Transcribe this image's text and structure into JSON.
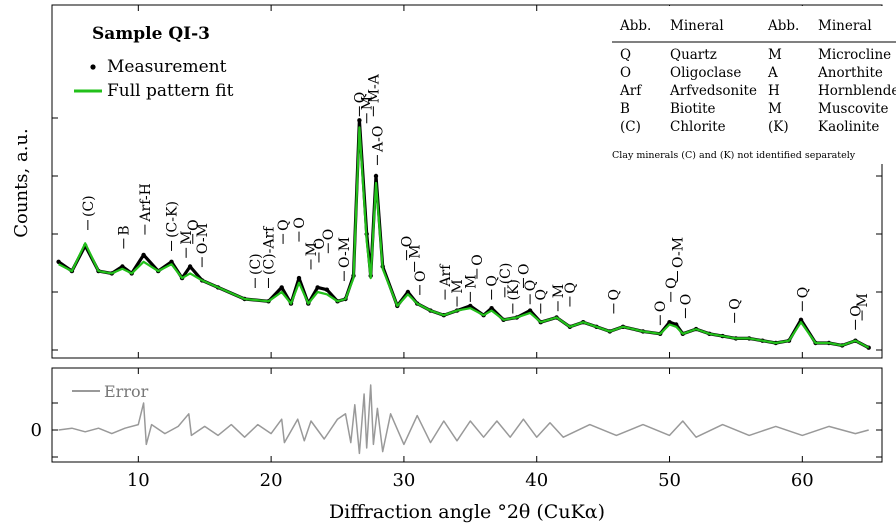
{
  "chart_data": [
    {
      "type": "line",
      "title": "Sample QI-3",
      "xlabel": "Diffraction angle °2θ (CuKα)",
      "ylabel": "Counts, a.u.",
      "xlim": [
        3.5,
        66
      ],
      "ylim": [
        0,
        100
      ],
      "x_ticks": [
        "10",
        "20",
        "30",
        "40",
        "50",
        "60"
      ],
      "grid": false,
      "legend_position": "top-left",
      "legend": [
        {
          "label": "Measurement",
          "style": "dot",
          "color": "#000000"
        },
        {
          "label": "Full pattern fit",
          "style": "line",
          "color": "#22c01a"
        }
      ],
      "series": [
        {
          "name": "Measurement",
          "color": "#000000",
          "x": [
            4,
            5,
            6,
            7,
            8,
            8.8,
            9.5,
            10.4,
            11.5,
            12.5,
            13.3,
            13.9,
            14.8,
            16,
            18,
            19.8,
            20.8,
            21.5,
            22.1,
            22.8,
            23.5,
            24.2,
            25,
            25.6,
            26.2,
            26.65,
            27.2,
            27.5,
            27.9,
            28.4,
            29.5,
            30.3,
            31,
            32,
            33,
            34,
            35,
            36,
            36.6,
            37.5,
            38.5,
            39.5,
            40.3,
            41.5,
            42.5,
            43.5,
            44.5,
            45.5,
            46.5,
            48,
            49.3,
            50,
            50.5,
            51,
            52,
            53,
            54,
            55,
            56,
            57,
            58,
            59,
            59.9,
            61,
            62,
            63,
            64,
            65
          ],
          "y": [
            38,
            34,
            45,
            34,
            33,
            36,
            33,
            41,
            34,
            38,
            31,
            36,
            30,
            27,
            22,
            21,
            27,
            20,
            31,
            20,
            27,
            26,
            21,
            22,
            32,
            99,
            50,
            32,
            75,
            36,
            19,
            25,
            20,
            17,
            15,
            17,
            19,
            15,
            18,
            13,
            14,
            17,
            12,
            14,
            10,
            12,
            10,
            8,
            10,
            8,
            7,
            12,
            11,
            7,
            9,
            7,
            6,
            5,
            5,
            4,
            3,
            4,
            13,
            3,
            3,
            2,
            4,
            1
          ]
        },
        {
          "name": "Full pattern fit",
          "color": "#22c01a",
          "x": [
            4,
            5,
            6,
            7,
            8,
            8.8,
            9.5,
            10.4,
            11.5,
            12.5,
            13.3,
            13.9,
            14.8,
            16,
            18,
            19.8,
            20.8,
            21.5,
            22.1,
            22.8,
            23.5,
            24.2,
            25,
            25.6,
            26.2,
            26.65,
            27.2,
            27.5,
            27.9,
            28.4,
            29.5,
            30.3,
            31,
            32,
            33,
            34,
            35,
            36,
            36.6,
            37.5,
            38.5,
            39.5,
            40.3,
            41.5,
            42.5,
            43.5,
            44.5,
            45.5,
            46.5,
            48,
            49.3,
            50,
            50.5,
            51,
            52,
            53,
            54,
            55,
            56,
            57,
            58,
            59,
            59.9,
            61,
            62,
            63,
            64,
            65
          ],
          "y": [
            37,
            34,
            46,
            34,
            33,
            35,
            33,
            38,
            34,
            37,
            31,
            33,
            30,
            27,
            22,
            21,
            25,
            20,
            29,
            20,
            25,
            24,
            21,
            22,
            31,
            96,
            47,
            31,
            72,
            35,
            19,
            24,
            20,
            17,
            15,
            17,
            18,
            15,
            17,
            13,
            14,
            16,
            12,
            14,
            10,
            12,
            10,
            8,
            10,
            8,
            7,
            11,
            10,
            7,
            9,
            7,
            6,
            5,
            5,
            4,
            3,
            4,
            12,
            3,
            3,
            2,
            4,
            1
          ]
        }
      ],
      "peak_labels": [
        {
          "text": "(C)",
          "x": 6.2,
          "y": 50
        },
        {
          "text": "B",
          "x": 8.9,
          "y": 42
        },
        {
          "text": "Arf-H",
          "x": 10.5,
          "y": 48
        },
        {
          "text": "(C-K)",
          "x": 12.5,
          "y": 41
        },
        {
          "text": "M",
          "x": 13.6,
          "y": 38
        },
        {
          "text": "O",
          "x": 14.1,
          "y": 44
        },
        {
          "text": "O-M",
          "x": 14.8,
          "y": 34
        },
        {
          "text": "(C)",
          "x": 18.8,
          "y": 25
        },
        {
          "text": "(C)-Arf",
          "x": 19.8,
          "y": 25
        },
        {
          "text": "Q",
          "x": 20.9,
          "y": 44
        },
        {
          "text": "O",
          "x": 22.1,
          "y": 45
        },
        {
          "text": "M",
          "x": 23.0,
          "y": 33
        },
        {
          "text": "O",
          "x": 23.6,
          "y": 36
        },
        {
          "text": "O",
          "x": 24.3,
          "y": 40
        },
        {
          "text": "O-M",
          "x": 25.5,
          "y": 28
        },
        {
          "text": "Q",
          "x": 26.65,
          "y": 99
        },
        {
          "text": "M",
          "x": 27.2,
          "y": 96
        },
        {
          "text": "M-A",
          "x": 27.7,
          "y": 99
        },
        {
          "text": "A-O",
          "x": 28.0,
          "y": 78
        },
        {
          "text": "O",
          "x": 30.2,
          "y": 37
        },
        {
          "text": "M",
          "x": 30.8,
          "y": 32
        },
        {
          "text": "O",
          "x": 31.2,
          "y": 22
        },
        {
          "text": "Arf",
          "x": 33.1,
          "y": 20
        },
        {
          "text": "M",
          "x": 34.0,
          "y": 17
        },
        {
          "text": "M",
          "x": 35.0,
          "y": 19
        },
        {
          "text": "O",
          "x": 35.5,
          "y": 29
        },
        {
          "text": "Q",
          "x": 36.6,
          "y": 20
        },
        {
          "text": "(C)",
          "x": 37.6,
          "y": 21
        },
        {
          "text": "(K)",
          "x": 38.2,
          "y": 14
        },
        {
          "text": "O",
          "x": 39.0,
          "y": 25
        },
        {
          "text": "Q",
          "x": 39.5,
          "y": 18
        },
        {
          "text": "Q",
          "x": 40.3,
          "y": 14
        },
        {
          "text": "M",
          "x": 41.6,
          "y": 15
        },
        {
          "text": "Q",
          "x": 42.5,
          "y": 17
        },
        {
          "text": "Q",
          "x": 45.8,
          "y": 14
        },
        {
          "text": "O",
          "x": 49.3,
          "y": 9
        },
        {
          "text": "Q",
          "x": 50.1,
          "y": 19
        },
        {
          "text": "O-M",
          "x": 50.6,
          "y": 28
        },
        {
          "text": "O",
          "x": 51.2,
          "y": 12
        },
        {
          "text": "Q",
          "x": 54.9,
          "y": 10
        },
        {
          "text": "Q",
          "x": 60.0,
          "y": 15
        },
        {
          "text": "O",
          "x": 64.0,
          "y": 7
        },
        {
          "text": "M",
          "x": 64.5,
          "y": 11
        }
      ]
    },
    {
      "type": "line",
      "xlabel": "Diffraction angle °2θ (CuKα)",
      "x_ticks": [
        "10",
        "20",
        "30",
        "40",
        "50",
        "60"
      ],
      "y_ticks": [
        "0"
      ],
      "ylim": [
        -3,
        3
      ],
      "legend": [
        {
          "label": "Error",
          "style": "line",
          "color": "#999999"
        }
      ],
      "series": [
        {
          "name": "Error",
          "color": "#999999",
          "x": [
            4,
            5,
            6,
            7,
            8,
            9,
            10,
            10.4,
            10.6,
            11,
            12,
            13,
            13.8,
            14,
            15,
            16,
            17,
            18,
            19,
            20,
            20.8,
            21,
            22,
            22.5,
            23,
            24,
            25,
            25.6,
            26,
            26.3,
            26.65,
            27,
            27.2,
            27.5,
            27.7,
            28,
            28.4,
            29,
            30,
            31,
            32,
            33,
            34,
            35,
            36,
            37,
            38,
            39,
            40,
            41,
            42,
            44,
            46,
            48,
            50,
            51,
            52,
            54,
            56,
            58,
            60,
            62,
            64,
            65
          ],
          "y": [
            0.0,
            0.1,
            -0.1,
            0.1,
            -0.2,
            0.1,
            0.3,
            1.5,
            -0.8,
            0.3,
            -0.2,
            0.2,
            0.9,
            -0.3,
            0.2,
            -0.3,
            0.3,
            -0.4,
            0.3,
            -0.2,
            0.6,
            -0.7,
            0.6,
            -0.6,
            0.5,
            -0.5,
            0.6,
            0.9,
            -0.7,
            1.4,
            -1.3,
            2.0,
            -1.0,
            2.5,
            -0.8,
            1.2,
            -1.2,
            0.9,
            -0.8,
            0.8,
            -0.7,
            0.5,
            -0.6,
            0.5,
            -0.4,
            0.5,
            -0.4,
            0.6,
            -0.4,
            0.4,
            -0.4,
            0.3,
            -0.3,
            0.3,
            -0.3,
            0.5,
            -0.4,
            0.3,
            -0.3,
            0.2,
            -0.3,
            0.2,
            -0.2,
            0.0
          ]
        }
      ]
    }
  ],
  "mineral_table": {
    "headers": [
      "Abb.",
      "Mineral",
      "Abb.",
      "Mineral"
    ],
    "rows": [
      [
        "Q",
        "Quartz",
        "M",
        "Microcline"
      ],
      [
        "O",
        "Oligoclase",
        "A",
        "Anorthite"
      ],
      [
        "Arf",
        "Arfvedsonite",
        "H",
        "Hornblende"
      ],
      [
        "B",
        "Biotite",
        "M",
        "Muscovite"
      ],
      [
        "(C)",
        "Chlorite",
        "(K)",
        "Kaolinite"
      ]
    ],
    "footnote": "Clay minerals (C) and (K) not identified separately"
  }
}
